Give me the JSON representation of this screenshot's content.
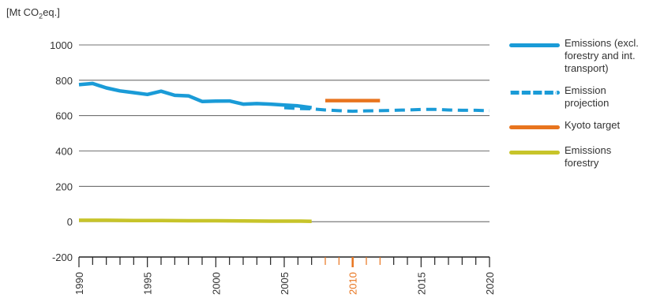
{
  "chart_data": {
    "type": "line",
    "ylabel_prefix": "[Mt CO",
    "ylabel_sub": "2",
    "ylabel_suffix": "eq.]",
    "xlim": [
      1990,
      2020
    ],
    "ylim": [
      -200,
      1000
    ],
    "yticks": [
      1000,
      800,
      600,
      400,
      200,
      0,
      -200
    ],
    "xtick_labels": [
      1990,
      1995,
      2000,
      2005,
      2010,
      2015,
      2020
    ],
    "highlight_range": [
      2008,
      2012
    ],
    "grid": true,
    "legend_position": "right",
    "series": [
      {
        "name": "Emissions (excl. forestry and int. transport)",
        "color": "#1a9bd7",
        "style": "solid",
        "x": [
          1990,
          1991,
          1992,
          1993,
          1994,
          1995,
          1996,
          1997,
          1998,
          1999,
          2000,
          2001,
          2002,
          2003,
          2004,
          2005,
          2006,
          2007
        ],
        "y": [
          775,
          782,
          757,
          740,
          730,
          720,
          738,
          715,
          712,
          680,
          682,
          683,
          665,
          668,
          665,
          660,
          655,
          645
        ]
      },
      {
        "name": "Emission projection",
        "color": "#1a9bd7",
        "style": "dashed",
        "x": [
          2005,
          2006,
          2007,
          2008,
          2009,
          2010,
          2011,
          2012,
          2013,
          2014,
          2015,
          2016,
          2017,
          2018,
          2019,
          2020
        ],
        "y": [
          645,
          640,
          638,
          632,
          628,
          625,
          627,
          628,
          630,
          632,
          635,
          635,
          632,
          630,
          630,
          628
        ]
      },
      {
        "name": "Kyoto target",
        "color": "#e8741e",
        "style": "solid",
        "x": [
          2008,
          2012
        ],
        "y": [
          685,
          685
        ]
      },
      {
        "name": "Emissions forestry",
        "color": "#c7c42a",
        "style": "solid",
        "x": [
          1990,
          1992,
          1994,
          1996,
          1998,
          2000,
          2002,
          2004,
          2006,
          2007
        ],
        "y": [
          8,
          8,
          6,
          6,
          5,
          5,
          4,
          3,
          3,
          2
        ]
      }
    ]
  },
  "legend": [
    {
      "label": "Emissions (excl. forestry and int. transport)",
      "color": "#1a9bd7",
      "style": "solid"
    },
    {
      "label": "Emission projection",
      "color": "#1a9bd7",
      "style": "dashed"
    },
    {
      "label": "Kyoto target",
      "color": "#e8741e",
      "style": "solid"
    },
    {
      "label": "Emissions forestry",
      "color": "#c7c42a",
      "style": "solid"
    }
  ],
  "colors": {
    "axis": "#222222",
    "grid": "#444444",
    "tick_text": "#333333",
    "highlight_tick": "#e8741e"
  }
}
